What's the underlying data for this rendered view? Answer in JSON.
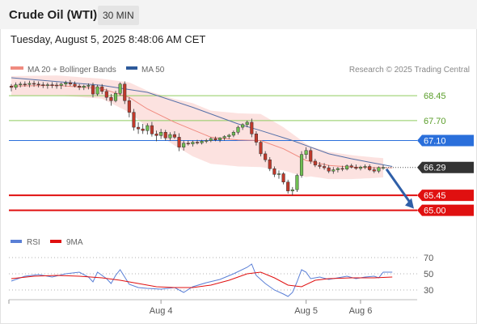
{
  "header": {
    "title": "Crude Oil (WTI)",
    "interval": "30 MIN",
    "datetime": "Tuesday, August 5, 2025 8:48:06 AM CET"
  },
  "legend": {
    "items": [
      {
        "label": "MA 20 + Bollinger Bands",
        "color": "#f08b80"
      },
      {
        "label": "MA 50",
        "color": "#2d5a9a"
      }
    ],
    "source": "Research © 2025 Trading Central"
  },
  "chart_data": [
    {
      "type": "candlestick",
      "title": "Crude Oil (WTI)",
      "interval": "30 MIN",
      "ylim": [
        64.6,
        68.99
      ],
      "x_ticks": [
        {
          "label": "Aug 4",
          "index": 33
        },
        {
          "label": "Aug 5",
          "index": 65
        },
        {
          "label": "Aug 6",
          "index": 77
        }
      ],
      "last_price": 66.29,
      "levels": [
        {
          "value": 68.45,
          "label": "68.45",
          "type": "resistance",
          "color": "#8fcc5f"
        },
        {
          "value": 67.7,
          "label": "67.70",
          "type": "resistance",
          "color": "#8fcc5f"
        },
        {
          "value": 67.1,
          "label": "67.10",
          "type": "pivot",
          "color": "#2a6fdb"
        },
        {
          "value": 65.45,
          "label": "65.45",
          "type": "support",
          "color": "#e01010"
        },
        {
          "value": 65.0,
          "label": "65.00",
          "type": "support",
          "color": "#e01010"
        }
      ],
      "series": [
        {
          "name": "price",
          "ohlc": [
            [
              68.74,
              68.8,
              68.58,
              68.7
            ],
            [
              68.7,
              68.85,
              68.63,
              68.78
            ],
            [
              68.78,
              68.87,
              68.7,
              68.8
            ],
            [
              68.8,
              68.88,
              68.72,
              68.79
            ],
            [
              68.79,
              68.9,
              68.7,
              68.82
            ],
            [
              68.82,
              68.9,
              68.72,
              68.8
            ],
            [
              68.8,
              68.88,
              68.7,
              68.78
            ],
            [
              68.78,
              68.86,
              68.68,
              68.76
            ],
            [
              68.76,
              68.84,
              68.66,
              68.78
            ],
            [
              68.78,
              68.86,
              68.68,
              68.77
            ],
            [
              68.77,
              68.85,
              68.66,
              68.76
            ],
            [
              68.76,
              68.84,
              68.65,
              68.8
            ],
            [
              68.8,
              68.9,
              68.72,
              68.84
            ],
            [
              68.84,
              68.92,
              68.74,
              68.8
            ],
            [
              68.8,
              68.88,
              68.7,
              68.74
            ],
            [
              68.74,
              68.8,
              68.62,
              68.7
            ],
            [
              68.7,
              68.78,
              68.62,
              68.74
            ],
            [
              68.74,
              68.82,
              68.64,
              68.76
            ],
            [
              68.76,
              68.84,
              68.4,
              68.5
            ],
            [
              68.5,
              68.78,
              68.44,
              68.72
            ],
            [
              68.72,
              68.8,
              68.5,
              68.58
            ],
            [
              68.58,
              68.66,
              68.3,
              68.4
            ],
            [
              68.4,
              68.5,
              68.15,
              68.3
            ],
            [
              68.3,
              68.6,
              68.25,
              68.52
            ],
            [
              68.52,
              68.85,
              68.45,
              68.8
            ],
            [
              68.8,
              68.88,
              68.2,
              68.3
            ],
            [
              68.3,
              68.4,
              67.8,
              67.95
            ],
            [
              67.95,
              68.05,
              67.4,
              67.5
            ],
            [
              67.5,
              67.65,
              67.3,
              67.45
            ],
            [
              67.45,
              67.6,
              67.3,
              67.4
            ],
            [
              67.4,
              67.62,
              67.28,
              67.55
            ],
            [
              67.55,
              67.66,
              67.22,
              67.3
            ],
            [
              67.3,
              67.4,
              67.08,
              67.25
            ],
            [
              67.25,
              67.45,
              67.15,
              67.35
            ],
            [
              67.35,
              67.42,
              67.1,
              67.18
            ],
            [
              67.18,
              67.35,
              67.1,
              67.28
            ],
            [
              67.28,
              67.38,
              67.15,
              67.2
            ],
            [
              67.2,
              67.32,
              66.78,
              66.9
            ],
            [
              66.9,
              67.1,
              66.8,
              67.02
            ],
            [
              67.02,
              67.1,
              66.95,
              67.0
            ],
            [
              67.0,
              67.1,
              66.92,
              67.05
            ],
            [
              67.05,
              67.12,
              66.98,
              67.03
            ],
            [
              67.03,
              67.12,
              66.98,
              67.08
            ],
            [
              67.08,
              67.15,
              67.02,
              67.1
            ],
            [
              67.1,
              67.2,
              67.05,
              67.16
            ],
            [
              67.16,
              67.22,
              67.08,
              67.12
            ],
            [
              67.12,
              67.2,
              67.05,
              67.18
            ],
            [
              67.18,
              67.26,
              67.1,
              67.22
            ],
            [
              67.22,
              67.3,
              67.15,
              67.26
            ],
            [
              67.26,
              67.4,
              67.2,
              67.35
            ],
            [
              67.35,
              67.55,
              67.28,
              67.5
            ],
            [
              67.5,
              67.62,
              67.42,
              67.58
            ],
            [
              67.58,
              67.7,
              67.5,
              67.65
            ],
            [
              67.65,
              67.76,
              67.2,
              67.3
            ],
            [
              67.3,
              67.38,
              66.95,
              67.05
            ],
            [
              67.05,
              67.1,
              66.62,
              66.7
            ],
            [
              66.7,
              66.78,
              66.45,
              66.52
            ],
            [
              66.52,
              66.6,
              66.18,
              66.25
            ],
            [
              66.25,
              66.32,
              66.0,
              66.08
            ],
            [
              66.08,
              66.2,
              65.95,
              66.1
            ],
            [
              66.1,
              66.15,
              65.78,
              65.85
            ],
            [
              65.85,
              65.92,
              65.5,
              65.58
            ],
            [
              65.58,
              65.7,
              65.45,
              65.62
            ],
            [
              65.62,
              66.1,
              65.55,
              66.05
            ],
            [
              66.05,
              66.78,
              65.98,
              66.68
            ],
            [
              66.68,
              66.9,
              66.55,
              66.8
            ],
            [
              66.8,
              66.88,
              66.4,
              66.48
            ],
            [
              66.48,
              66.55,
              66.3,
              66.36
            ],
            [
              66.36,
              66.45,
              66.25,
              66.32
            ],
            [
              66.32,
              66.42,
              66.22,
              66.28
            ],
            [
              66.28,
              66.36,
              66.12,
              66.18
            ],
            [
              66.18,
              66.3,
              66.1,
              66.22
            ],
            [
              66.22,
              66.3,
              66.14,
              66.26
            ],
            [
              66.26,
              66.34,
              66.18,
              66.24
            ],
            [
              66.24,
              66.38,
              66.2,
              66.34
            ],
            [
              66.34,
              66.4,
              66.26,
              66.3
            ],
            [
              66.3,
              66.38,
              66.22,
              66.26
            ],
            [
              66.26,
              66.34,
              66.2,
              66.3
            ],
            [
              66.3,
              66.38,
              66.24,
              66.32
            ],
            [
              66.32,
              66.38,
              66.18,
              66.22
            ],
            [
              66.22,
              66.3,
              66.12,
              66.18
            ],
            [
              66.18,
              66.32,
              66.12,
              66.29
            ],
            [
              66.29,
              66.36,
              66.22,
              66.29
            ]
          ]
        },
        {
          "name": "MA 50",
          "values": [
            [
              0,
              68.99
            ],
            [
              20,
              68.76
            ],
            [
              30,
              68.55
            ],
            [
              40,
              68.1
            ],
            [
              50,
              67.6
            ],
            [
              55,
              67.4
            ],
            [
              62,
              67.1
            ],
            [
              70,
              66.7
            ],
            [
              75,
              66.55
            ],
            [
              80,
              66.42
            ],
            [
              84,
              66.32
            ]
          ]
        },
        {
          "name": "MA 20",
          "values": [
            [
              0,
              68.74
            ],
            [
              10,
              68.76
            ],
            [
              20,
              68.66
            ],
            [
              26,
              68.4
            ],
            [
              30,
              68.05
            ],
            [
              36,
              67.65
            ],
            [
              44,
              67.2
            ],
            [
              50,
              67.12
            ],
            [
              55,
              67.1
            ],
            [
              60,
              66.85
            ],
            [
              65,
              66.5
            ],
            [
              70,
              66.35
            ],
            [
              75,
              66.3
            ],
            [
              80,
              66.28
            ],
            [
              84,
              66.28
            ]
          ]
        }
      ],
      "projection": {
        "from": 66.29,
        "to": 65.0
      }
    },
    {
      "type": "line",
      "title": "RSI",
      "ylim": [
        18,
        78
      ],
      "y_ticks": [
        70,
        50,
        30
      ],
      "legend": [
        {
          "label": "RSI",
          "color": "#5a7fd6"
        },
        {
          "label": "9MA",
          "color": "#e01010"
        }
      ],
      "series": [
        {
          "name": "RSI",
          "color": "#5a7fd6",
          "values": [
            [
              0,
              41
            ],
            [
              3,
              47
            ],
            [
              6,
              49
            ],
            [
              9,
              46
            ],
            [
              12,
              50
            ],
            [
              15,
              52
            ],
            [
              17,
              46
            ],
            [
              18,
              40
            ],
            [
              19,
              52
            ],
            [
              21,
              44
            ],
            [
              22,
              38
            ],
            [
              23,
              48
            ],
            [
              24,
              55
            ],
            [
              26,
              37
            ],
            [
              28,
              33
            ],
            [
              30,
              32
            ],
            [
              33,
              31
            ],
            [
              36,
              33
            ],
            [
              38,
              27
            ],
            [
              40,
              34
            ],
            [
              43,
              39
            ],
            [
              46,
              43
            ],
            [
              49,
              50
            ],
            [
              52,
              58
            ],
            [
              53,
              62
            ],
            [
              54,
              48
            ],
            [
              56,
              38
            ],
            [
              58,
              30
            ],
            [
              60,
              25
            ],
            [
              61,
              22
            ],
            [
              62,
              27
            ],
            [
              63,
              40
            ],
            [
              64,
              55
            ],
            [
              65,
              52
            ],
            [
              66,
              44
            ],
            [
              68,
              46
            ],
            [
              70,
              43
            ],
            [
              72,
              45
            ],
            [
              74,
              47
            ],
            [
              76,
              44
            ],
            [
              78,
              46
            ],
            [
              80,
              47
            ],
            [
              81,
              45
            ],
            [
              82,
              52
            ],
            [
              84,
              52
            ]
          ]
        },
        {
          "name": "9MA",
          "color": "#e01010",
          "values": [
            [
              0,
              44
            ],
            [
              5,
              47
            ],
            [
              10,
              48
            ],
            [
              15,
              47
            ],
            [
              20,
              45
            ],
            [
              24,
              42
            ],
            [
              28,
              38
            ],
            [
              32,
              34
            ],
            [
              36,
              33
            ],
            [
              40,
              33
            ],
            [
              44,
              36
            ],
            [
              48,
              42
            ],
            [
              52,
              50
            ],
            [
              55,
              52
            ],
            [
              58,
              45
            ],
            [
              61,
              36
            ],
            [
              64,
              34
            ],
            [
              67,
              42
            ],
            [
              70,
              44
            ],
            [
              75,
              45
            ],
            [
              80,
              45
            ],
            [
              84,
              46
            ]
          ]
        }
      ]
    }
  ]
}
